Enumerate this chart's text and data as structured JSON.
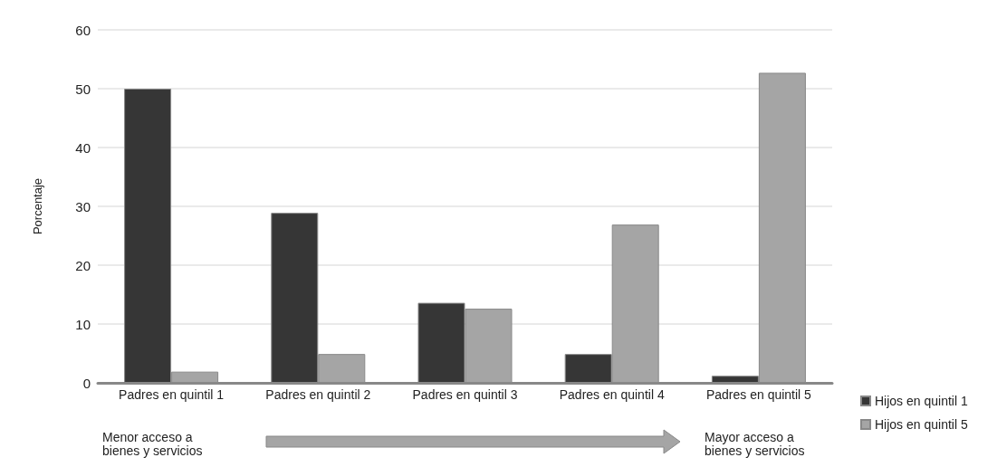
{
  "chart_data": {
    "type": "bar",
    "ylabel": "Porcentaje",
    "categories": [
      "Padres en quintil 1",
      "Padres en quintil 2",
      "Padres en quintil 3",
      "Padres en quintil 4",
      "Padres en quintil 5"
    ],
    "series": [
      {
        "name": "Hijos en quintil 1",
        "color": "#363636",
        "values": [
          50,
          28.9,
          13.6,
          4.9,
          1.2
        ]
      },
      {
        "name": "Hijos en quintil 5",
        "color": "#a5a5a5",
        "values": [
          1.9,
          4.9,
          12.6,
          26.9,
          52.7
        ]
      }
    ],
    "ylim": [
      0,
      60
    ],
    "yticks": [
      0,
      10,
      20,
      30,
      40,
      50,
      60
    ],
    "grid": "y",
    "legend": "bottom right",
    "annotations": [
      "Menor acceso a\nbienes y servicios",
      "Mayor acceso a\nbienes y servicios"
    ]
  }
}
